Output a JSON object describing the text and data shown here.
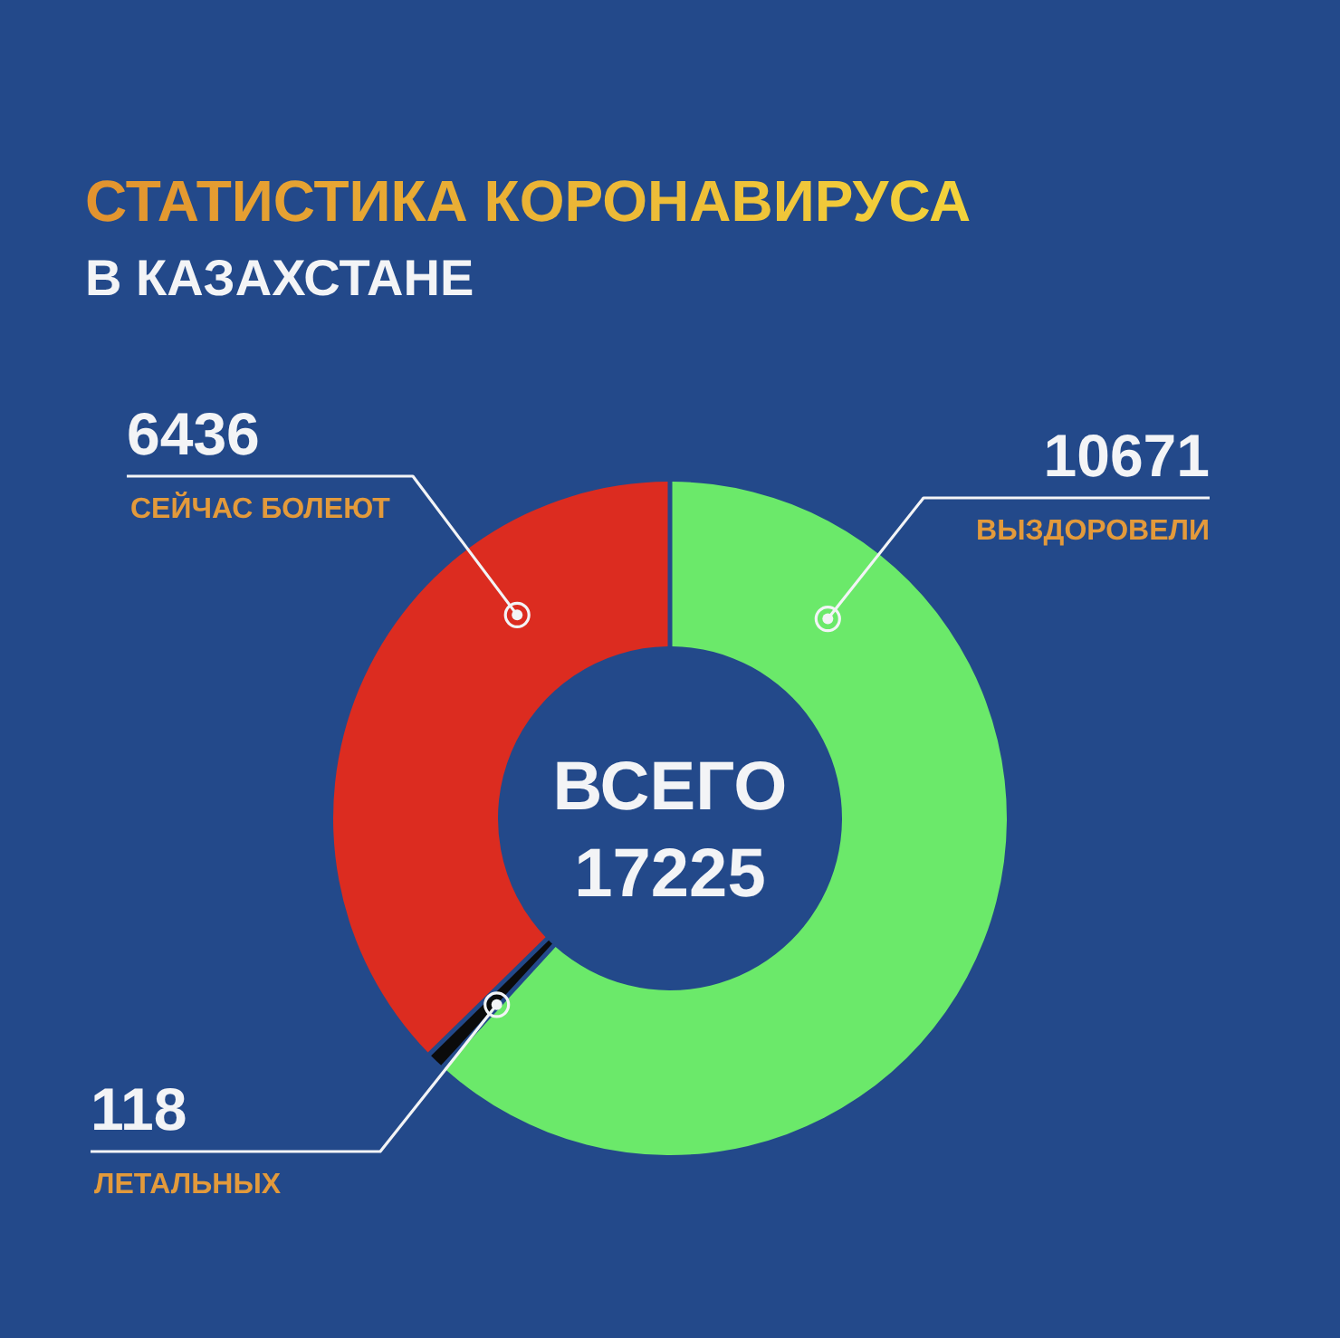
{
  "chart_data": {
    "type": "donut",
    "title": "СТАТИСТИКА КОРОНАВИРУСА",
    "subtitle": "В КАЗАХСТАНЕ",
    "categories": [
      "ВЫЗДОРОВЕЛИ",
      "ЛЕТАЛЬНЫХ",
      "СЕЙЧАС БОЛЕЮТ"
    ],
    "values": [
      10671,
      118,
      6436
    ],
    "colors": [
      "#6be96a",
      "#0b0b0b",
      "#dc2c20"
    ],
    "data_labels": true,
    "annotations": [
      "ВСЕГО",
      "17225"
    ]
  }
}
